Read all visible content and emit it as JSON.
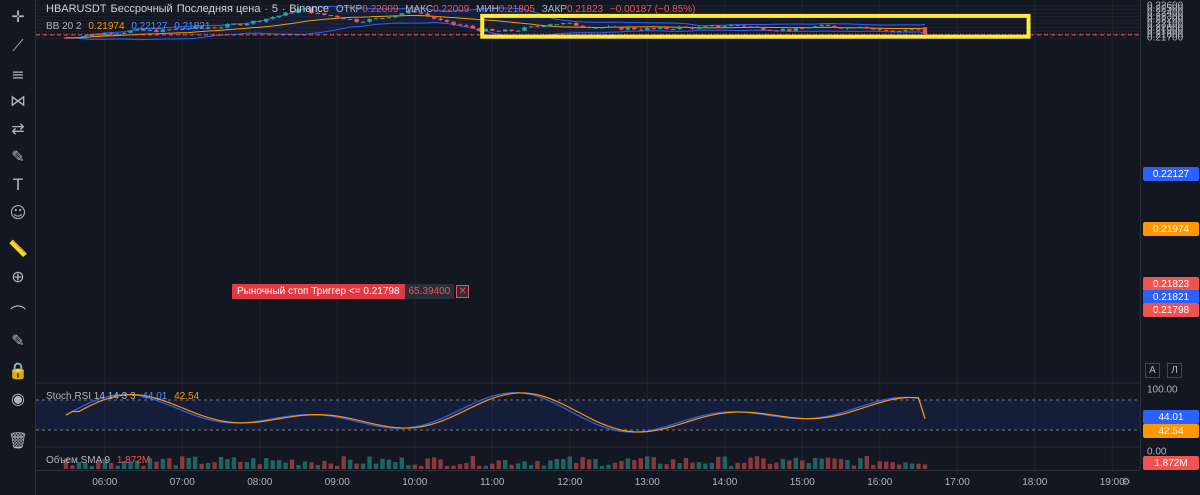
{
  "symbol": {
    "name": "HBARUSDT",
    "type": "Бессрочный",
    "price_type": "Последняя цена",
    "interval": "5",
    "exchange": "Binance"
  },
  "ohlc": {
    "open_label": "ОТКР",
    "open": "0.22009",
    "high_label": "МАКС",
    "high": "0.22009",
    "low_label": "МИН",
    "low": "0.21805",
    "close_label": "ЗАКР",
    "close": "0.21823",
    "change": "−0.00187 (−0.85%)"
  },
  "bb_legend": {
    "name": "BB 20 2",
    "basis": "0.21974",
    "upper": "0.22127",
    "lower": "0.21821"
  },
  "stoch_legend": {
    "name": "Stoch RSI 14 14 3 3",
    "k": "44.01",
    "d": "42.54"
  },
  "volume_legend": {
    "name": "Объем SMA 9",
    "value": "1.872M"
  },
  "order": {
    "label": "Рыночный стоп Триггер <= 0.21798",
    "amount": "65.39400",
    "close_symbol": "✕"
  },
  "price_axis": {
    "ticks": [
      "0.22600",
      "0.22500",
      "0.22400",
      "0.22300",
      "0.22200",
      "0.22100",
      "0.22000",
      "0.21900",
      "0.21800",
      "0.21700"
    ],
    "badges": {
      "bb_upper": "0.22127",
      "bb_basis": "0.21974",
      "last_price": "0.21823",
      "bb_lower": "0.21821",
      "stop_price": "0.21798"
    },
    "stoch_ticks": [
      "100.00",
      "0.00"
    ],
    "stoch_badges": {
      "k": "44.01",
      "d": "42.54"
    },
    "volume_badge": "1.872M",
    "scale_buttons": [
      "A",
      "Л"
    ]
  },
  "time_axis": [
    "06:00",
    "07:00",
    "08:00",
    "09:00",
    "10:00",
    "11:00",
    "12:00",
    "13:00",
    "14:00",
    "15:00",
    "16:00",
    "17:00",
    "18:00",
    "19:00"
  ],
  "tools": [
    "crosshair-icon",
    "trend-line-icon",
    "fib-icon",
    "pattern-icon",
    "projection-icon",
    "brush-icon",
    "text-icon",
    "emoji-icon",
    "ruler-icon",
    "zoom-in-icon",
    "magnet-icon",
    "lock-drawing-icon",
    "lock-icon",
    "eye-icon",
    "trash-icon"
  ],
  "colors": {
    "up": "#26a69a",
    "down": "#ef5350",
    "bb_band": "#2962ff",
    "bb_basis": "#ff9800",
    "highlight_box": "#ffeb3b",
    "background": "#131722"
  },
  "chart_data": {
    "type": "candlestick",
    "price_range": [
      0.2167,
      0.2262
    ],
    "highlight_range": {
      "from": "11:00",
      "to": "17:55",
      "price_high": 0.2232,
      "price_low": 0.2175
    }
  }
}
